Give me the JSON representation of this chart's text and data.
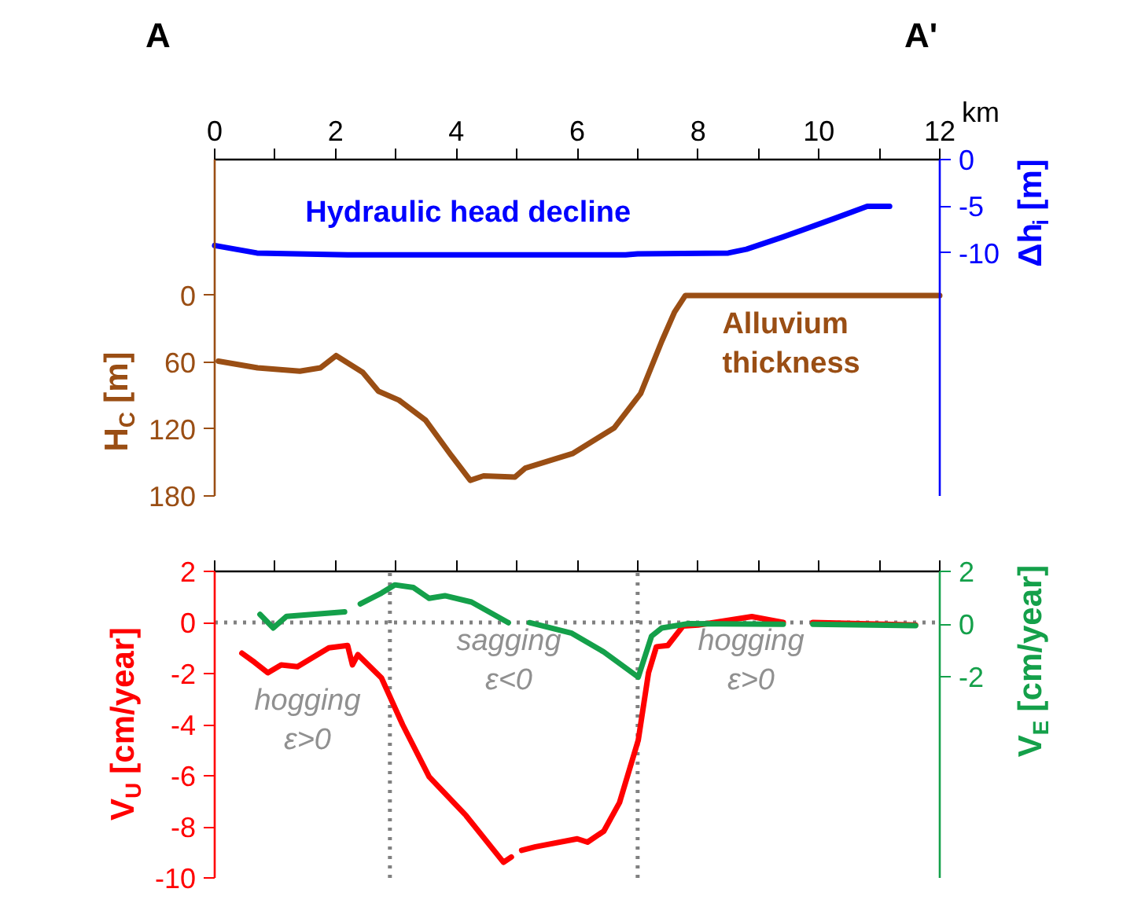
{
  "chart_data": [
    {
      "type": "line",
      "xlim": [
        0,
        12
      ],
      "xticks": [
        0,
        {
          "value": 1,
          "label": null
        },
        2,
        {
          "value": 3,
          "label": null
        },
        4,
        {
          "value": 5,
          "label": null
        },
        6,
        {
          "value": 7,
          "label": null
        },
        8,
        {
          "value": 9,
          "label": null
        },
        10,
        {
          "value": 11,
          "label": null
        },
        12
      ],
      "xlabel": "km",
      "ylim": [
        180,
        -122
      ],
      "yticks": [
        0,
        60,
        120,
        180
      ],
      "ylabel": "H$_{C}$ [m]",
      "y2lim": [
        -36,
        0
      ],
      "y2ticks": [
        0,
        -5,
        -10
      ],
      "y2label": "Δh$_{i}$ [m]",
      "grid": false,
      "legend": false,
      "annotations": [
        "A",
        "A'"
      ],
      "series": [
        {
          "name": "Hydraulic  head decline",
          "color": "#0000ff",
          "axis": "y2",
          "x": [
            0,
            0.7,
            2.2,
            6.8,
            7,
            8.5,
            8.8,
            9.4,
            10.26,
            10.8,
            11.17
          ],
          "values": [
            -9.2,
            -10,
            -10.2,
            -10.2,
            -10.1,
            -10,
            -9.6,
            -8.3,
            -6.3,
            -5,
            -5
          ]
        },
        {
          "name": "Alluvium\nthickness",
          "color": "#9a4e14",
          "axis": "y",
          "x": [
            0.06,
            0.71,
            1.41,
            1.75,
            2.01,
            2.45,
            2.71,
            3.05,
            3.49,
            3.92,
            4.23,
            4.45,
            4.97,
            5.14,
            5.92,
            6.61,
            7.05,
            7.4,
            7.61,
            7.79,
            12
          ],
          "values": [
            59,
            65,
            68,
            65,
            54,
            69,
            86,
            94,
            112,
            144,
            166,
            162,
            163,
            155,
            142,
            119,
            88,
            41,
            15,
            0,
            0
          ]
        }
      ]
    },
    {
      "type": "line",
      "xlim": [
        0,
        12
      ],
      "xticks": [
        0,
        1,
        2,
        3,
        4,
        5,
        6,
        7,
        8,
        9,
        10,
        11,
        12
      ],
      "tick_labels": "y",
      "ylim": [
        -10,
        2
      ],
      "yticks": [
        2,
        0,
        -2,
        -4,
        -6,
        -8,
        -10
      ],
      "ylabel": "V$_{U}$ [cm/year]",
      "y2lim": [
        -9.6,
        2
      ],
      "y2ticks": [
        2,
        0,
        -2
      ],
      "y2label": "V$_{E}$ [cm/year]",
      "grid": false,
      "legend": false,
      "ref_lines": [
        {
          "axis": "x",
          "value": 2.9,
          "color": "#808080",
          "line_style": "dotted"
        },
        {
          "axis": "x",
          "value": 7.0,
          "color": "#808080",
          "line_style": "dotted"
        },
        {
          "axis": "y",
          "value": 0,
          "color": "#808080",
          "line_style": "dotted"
        }
      ],
      "annotations": [
        "hogging\nε>0",
        "sagging\nε<0",
        "hogging\nε>0"
      ],
      "series": [
        {
          "color": "#ff0000",
          "axis": "y",
          "x": [
            0.45,
            0.66,
            0.88,
            1.1,
            1.37,
            1.89,
            2.2,
            2.28,
            2.37,
            2.76,
            3.11,
            3.55,
            4.16,
            4.78,
            4.91,
            4.98,
            5.08,
            5.31,
            6.0,
            6.17,
            6.44,
            6.7,
            7.01,
            7.18,
            7.31,
            7.5,
            7.75,
            8.0,
            8.89,
            9.41,
            9.6,
            9.9,
            11.6
          ],
          "values": [
            -1.2,
            -1.56,
            -1.97,
            -1.66,
            -1.73,
            -0.99,
            -0.9,
            -1.66,
            -1.26,
            -2.17,
            -4.0,
            -6.04,
            -7.56,
            -9.39,
            -9.18,
            null,
            -8.92,
            -8.78,
            -8.47,
            -8.6,
            -8.17,
            -7.05,
            -4.61,
            -1.97,
            -0.95,
            -0.9,
            -0.14,
            -0.1,
            0.23,
            0.0,
            null,
            0.0,
            -0.1
          ]
        },
        {
          "color": "#14a04a",
          "axis": "y2",
          "x": [
            0.75,
            0.97,
            1.19,
            2.15,
            2.3,
            2.41,
            2.76,
            2.98,
            3.29,
            3.55,
            3.81,
            4.25,
            4.86,
            5.0,
            5.21,
            5.91,
            6.44,
            7.01,
            7.23,
            7.4,
            7.84,
            9.41,
            9.6,
            9.9,
            11.6
          ],
          "values": [
            0.37,
            -0.14,
            0.3,
            0.47,
            null,
            0.77,
            1.18,
            1.49,
            1.39,
            0.98,
            1.08,
            0.84,
            0.06,
            null,
            0.06,
            -0.34,
            -1.05,
            -2.0,
            -0.45,
            -0.14,
            0.02,
            0.0,
            null,
            0.0,
            -0.05
          ]
        }
      ]
    }
  ]
}
